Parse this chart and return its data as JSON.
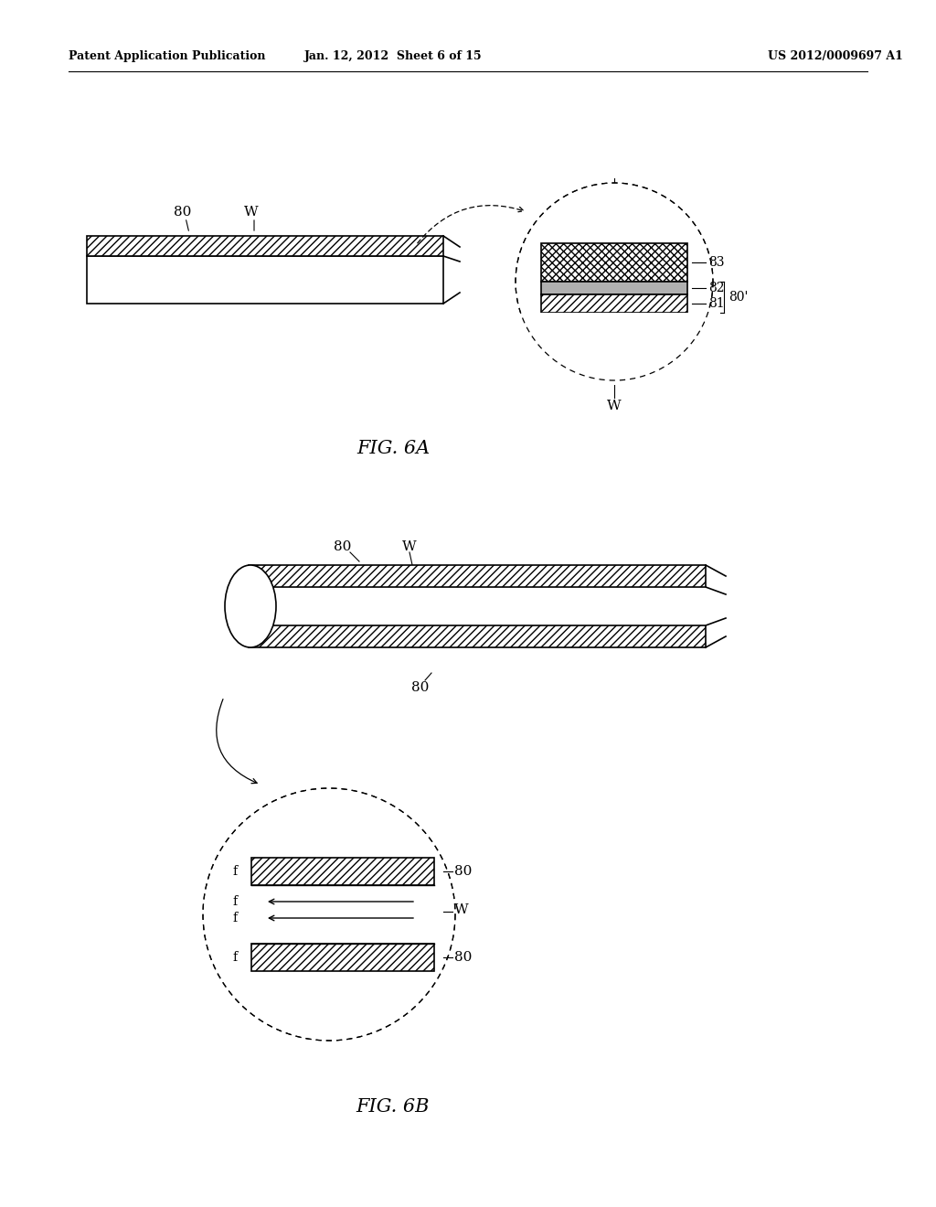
{
  "bg_color": "#ffffff",
  "header_left": "Patent Application Publication",
  "header_mid": "Jan. 12, 2012  Sheet 6 of 15",
  "header_right": "US 2012/0009697 A1",
  "fig6a_label": "FIG. 6A",
  "fig6b_label": "FIG. 6B"
}
